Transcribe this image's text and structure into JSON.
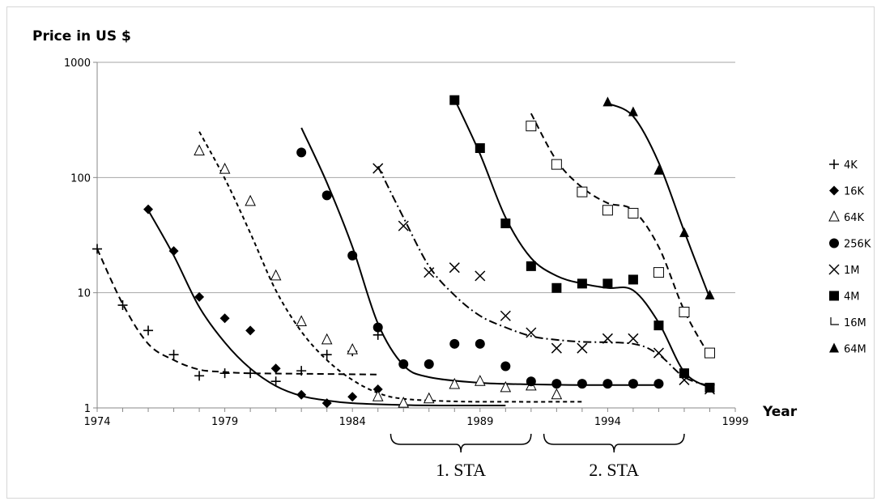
{
  "chart_data": {
    "type": "scatter",
    "ylabel": "Price in US $",
    "xlabel": "Year",
    "yscale": "log",
    "ylim": [
      1,
      1000
    ],
    "xlim": [
      1974,
      1999
    ],
    "x_ticks": [
      "1974",
      "1979",
      "1984",
      "1989",
      "1994",
      "1999"
    ],
    "y_ticks": [
      "1",
      "10",
      "100",
      "1000"
    ],
    "grid": "horizontal",
    "legend_position": "right",
    "series": [
      {
        "name": "4K",
        "marker": "plus",
        "points": [
          [
            1974,
            24
          ],
          [
            1975,
            7.8
          ],
          [
            1976,
            4.7
          ],
          [
            1977,
            2.9
          ],
          [
            1978,
            1.9
          ],
          [
            1979,
            2.0
          ],
          [
            1980,
            2.0
          ],
          [
            1981,
            1.7
          ],
          [
            1982,
            2.1
          ],
          [
            1983,
            2.9
          ],
          [
            1984,
            3.1
          ],
          [
            1985,
            4.3
          ]
        ],
        "fit": [
          [
            1974,
            24
          ],
          [
            1975,
            8
          ],
          [
            1976,
            3.6
          ],
          [
            1977,
            2.6
          ],
          [
            1978,
            2.15
          ],
          [
            1979,
            2.05
          ],
          [
            1980,
            2.0
          ],
          [
            1982,
            1.98
          ],
          [
            1985,
            1.95
          ]
        ],
        "fit_style": "dashed"
      },
      {
        "name": "16K",
        "marker": "diamond",
        "points": [
          [
            1976,
            53
          ],
          [
            1977,
            23
          ],
          [
            1978,
            9.2
          ],
          [
            1979,
            6.0
          ],
          [
            1980,
            4.7
          ],
          [
            1981,
            2.2
          ],
          [
            1982,
            1.3
          ],
          [
            1983,
            1.1
          ],
          [
            1984,
            1.25
          ],
          [
            1985,
            1.45
          ]
        ],
        "fit": [
          [
            1976,
            52
          ],
          [
            1977,
            21
          ],
          [
            1978,
            7.5
          ],
          [
            1979,
            3.7
          ],
          [
            1980,
            2.2
          ],
          [
            1981,
            1.55
          ],
          [
            1982,
            1.27
          ],
          [
            1983,
            1.16
          ],
          [
            1984,
            1.1
          ],
          [
            1986,
            1.06
          ],
          [
            1988,
            1.05
          ],
          [
            1990,
            1.05
          ]
        ],
        "fit_style": "solid"
      },
      {
        "name": "64K",
        "marker": "triangle-open",
        "points": [
          [
            1978,
            170
          ],
          [
            1979,
            118
          ],
          [
            1980,
            62
          ],
          [
            1981,
            14
          ],
          [
            1982,
            5.6
          ],
          [
            1983,
            3.9
          ],
          [
            1984,
            3.2
          ],
          [
            1985,
            1.25
          ],
          [
            1986,
            1.1
          ],
          [
            1987,
            1.2
          ],
          [
            1988,
            1.6
          ],
          [
            1989,
            1.7
          ],
          [
            1990,
            1.5
          ],
          [
            1991,
            1.55
          ],
          [
            1992,
            1.3
          ]
        ],
        "fit": [
          [
            1978,
            250
          ],
          [
            1979,
            98
          ],
          [
            1980,
            33
          ],
          [
            1981,
            10.5
          ],
          [
            1982,
            4.6
          ],
          [
            1983,
            2.6
          ],
          [
            1984,
            1.75
          ],
          [
            1985,
            1.35
          ],
          [
            1986,
            1.2
          ],
          [
            1988,
            1.14
          ],
          [
            1990,
            1.13
          ],
          [
            1993,
            1.13
          ]
        ],
        "fit_style": "dotted"
      },
      {
        "name": "256K",
        "marker": "circle",
        "points": [
          [
            1982,
            165
          ],
          [
            1983,
            70
          ],
          [
            1984,
            21
          ],
          [
            1985,
            5.0
          ],
          [
            1986,
            2.4
          ],
          [
            1987,
            2.4
          ],
          [
            1988,
            3.6
          ],
          [
            1989,
            3.6
          ],
          [
            1990,
            2.3
          ],
          [
            1991,
            1.7
          ],
          [
            1992,
            1.62
          ],
          [
            1993,
            1.62
          ],
          [
            1994,
            1.62
          ],
          [
            1995,
            1.62
          ],
          [
            1996,
            1.62
          ]
        ],
        "fit": [
          [
            1982,
            270
          ],
          [
            1983,
            90
          ],
          [
            1984,
            25
          ],
          [
            1985,
            5.4
          ],
          [
            1986,
            2.35
          ],
          [
            1987,
            1.85
          ],
          [
            1989,
            1.65
          ],
          [
            1991,
            1.6
          ],
          [
            1993,
            1.58
          ],
          [
            1996,
            1.58
          ]
        ],
        "fit_style": "solid"
      },
      {
        "name": "1M",
        "marker": "x",
        "points": [
          [
            1985,
            120
          ],
          [
            1986,
            38
          ],
          [
            1987,
            15
          ],
          [
            1988,
            16.5
          ],
          [
            1989,
            14
          ],
          [
            1990,
            6.3
          ],
          [
            1991,
            4.5
          ],
          [
            1992,
            3.3
          ],
          [
            1993,
            3.3
          ],
          [
            1994,
            4.0
          ],
          [
            1995,
            4.0
          ],
          [
            1996,
            3.0
          ],
          [
            1997,
            1.75
          ],
          [
            1998,
            1.45
          ]
        ],
        "fit": [
          [
            1985,
            125
          ],
          [
            1986,
            45
          ],
          [
            1987,
            17
          ],
          [
            1988,
            9.5
          ],
          [
            1989,
            6.3
          ],
          [
            1990,
            5.0
          ],
          [
            1991,
            4.2
          ],
          [
            1992,
            3.9
          ],
          [
            1993,
            3.75
          ],
          [
            1995,
            3.6
          ],
          [
            1996,
            2.9
          ],
          [
            1997,
            1.85
          ],
          [
            1998,
            1.55
          ]
        ],
        "fit_style": "dashdot"
      },
      {
        "name": "4M",
        "marker": "square",
        "points": [
          [
            1988,
            470
          ],
          [
            1989,
            180
          ],
          [
            1990,
            40
          ],
          [
            1991,
            17
          ],
          [
            1992,
            11
          ],
          [
            1993,
            12
          ],
          [
            1994,
            12
          ],
          [
            1995,
            13
          ],
          [
            1996,
            5.2
          ],
          [
            1997,
            2.0
          ],
          [
            1998,
            1.5
          ]
        ],
        "fit": [
          [
            1988,
            480
          ],
          [
            1989,
            160
          ],
          [
            1990,
            45
          ],
          [
            1991,
            20
          ],
          [
            1992,
            14
          ],
          [
            1993,
            12
          ],
          [
            1994,
            11
          ],
          [
            1995,
            10.5
          ],
          [
            1996,
            5.5
          ],
          [
            1997,
            2.05
          ],
          [
            1998,
            1.5
          ]
        ],
        "fit_style": "solid"
      },
      {
        "name": "16M",
        "marker": "square-open",
        "points": [
          [
            1991,
            280
          ],
          [
            1992,
            130
          ],
          [
            1993,
            75
          ],
          [
            1994,
            52
          ],
          [
            1995,
            49
          ],
          [
            1996,
            15
          ],
          [
            1997,
            6.8
          ],
          [
            1998,
            3.0
          ]
        ],
        "fit": [
          [
            1991,
            360
          ],
          [
            1992,
            140
          ],
          [
            1993,
            82
          ],
          [
            1994,
            60
          ],
          [
            1995,
            52
          ],
          [
            1996,
            25
          ],
          [
            1997,
            7.0
          ],
          [
            1998,
            2.8
          ]
        ],
        "fit_style": "dashed"
      },
      {
        "name": "64M",
        "marker": "triangle",
        "points": [
          [
            1994,
            450
          ],
          [
            1995,
            370
          ],
          [
            1996,
            115
          ],
          [
            1997,
            33
          ],
          [
            1998,
            9.5
          ]
        ],
        "fit": [
          [
            1994,
            440
          ],
          [
            1995,
            340
          ],
          [
            1996,
            135
          ],
          [
            1997,
            34
          ],
          [
            1998,
            9.0
          ]
        ],
        "fit_style": "solid"
      }
    ],
    "annotations": [
      {
        "label": "1. STA",
        "x_from": 1985.5,
        "x_to": 1991
      },
      {
        "label": "2. STA",
        "x_from": 1991.5,
        "x_to": 1997
      }
    ]
  }
}
